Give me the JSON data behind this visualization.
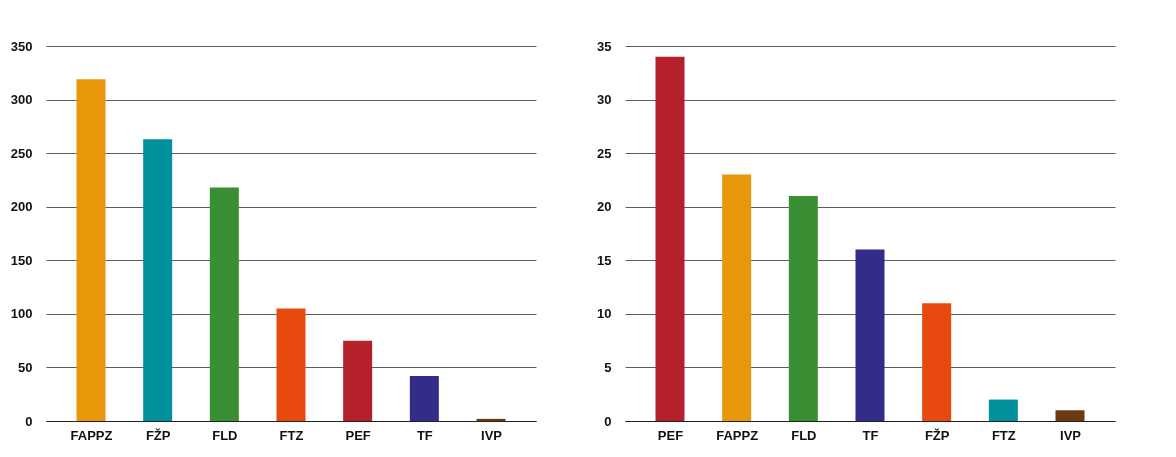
{
  "chart_data": [
    {
      "type": "bar",
      "categories": [
        "FAPPZ",
        "FŽP",
        "FLD",
        "FTZ",
        "PEF",
        "TF",
        "IVP"
      ],
      "values": [
        319,
        263,
        218,
        105,
        75,
        42,
        2
      ],
      "colors": [
        "#e8960a",
        "#00929c",
        "#3a8e34",
        "#e8490f",
        "#b5202a",
        "#332d8a",
        "#6b3a0f"
      ],
      "ylim": [
        0,
        350
      ],
      "yticks": [
        0,
        50,
        100,
        150,
        200,
        250,
        300,
        350
      ],
      "grid": "y"
    },
    {
      "type": "bar",
      "categories": [
        "PEF",
        "FAPPZ",
        "FLD",
        "TF",
        "FŽP",
        "FTZ",
        "IVP"
      ],
      "values": [
        34,
        23,
        21,
        16,
        11,
        2,
        1
      ],
      "colors": [
        "#b5202a",
        "#e8960a",
        "#3a8e34",
        "#332d8a",
        "#e8490f",
        "#00929c",
        "#6b3a0f"
      ],
      "ylim": [
        0,
        35
      ],
      "yticks": [
        0,
        5,
        10,
        15,
        20,
        25,
        30,
        35
      ],
      "grid": "y"
    }
  ]
}
